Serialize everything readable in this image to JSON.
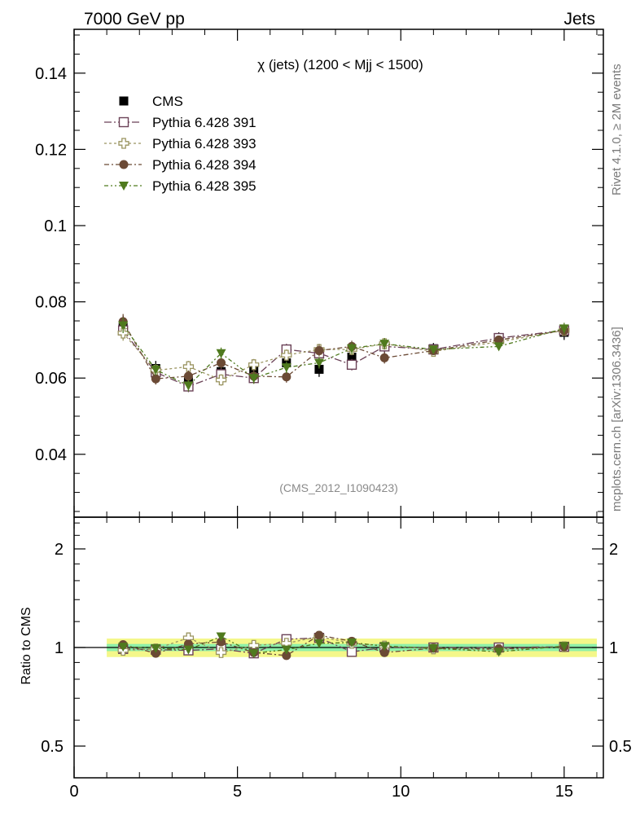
{
  "header": {
    "left_label": "7000 GeV pp",
    "right_label": "Jets"
  },
  "side": {
    "rivet_label": "Rivet 4.1.0, ≥ 2M events",
    "mcplots_label": "mcplots.cern.ch [arXiv:1306.3436]"
  },
  "colors": {
    "cms": "#000000",
    "p391": "#6b4257",
    "p393": "#9a9460",
    "p394": "#6b4a35",
    "p395": "#4f7a1e",
    "band_outer": "#f4f78a",
    "band_inner": "#8ef0a8"
  },
  "chart_data": [
    {
      "type": "scatter",
      "panel": "main",
      "title": "χ (jets) (1200 < Mjj < 1500)",
      "watermark": "(CMS_2012_I1090423)",
      "xlabel": "",
      "ylabel": "",
      "xlim": [
        0,
        16.2
      ],
      "ylim": [
        0.0235,
        0.1515
      ],
      "xticks": [
        0,
        5,
        10,
        15
      ],
      "xtick_labels": [
        "0",
        "5",
        "10",
        "15"
      ],
      "yticks": [
        0.04,
        0.06,
        0.08,
        0.1,
        0.12,
        0.14
      ],
      "ytick_labels": [
        "0.04",
        "0.06",
        "0.08",
        "0.1",
        "0.12",
        "0.14"
      ],
      "legend_position": "top-left",
      "x": [
        1.5,
        2.5,
        3.5,
        4.5,
        5.5,
        6.5,
        7.5,
        8.5,
        9.5,
        11,
        13,
        15
      ],
      "series": [
        {
          "name": "CMS",
          "key": "cms",
          "marker": "square-filled",
          "values": [
            0.0733,
            0.0625,
            0.059,
            0.0617,
            0.0625,
            0.064,
            0.0623,
            0.0655,
            0.0683,
            0.0677,
            0.0705,
            0.072
          ],
          "errors": [
            0.003,
            0.002,
            0.002,
            0.002,
            0.002,
            0.002,
            0.002,
            0.002,
            0.002,
            0.0015,
            0.0015,
            0.002
          ]
        },
        {
          "name": "Pythia 6.428 391",
          "key": "p391",
          "marker": "square-open",
          "values": [
            0.0725,
            0.0615,
            0.0578,
            0.061,
            0.06,
            0.0675,
            0.0665,
            0.0635,
            0.0683,
            0.0675,
            0.0705,
            0.0725
          ],
          "errors": [
            0.002,
            0.0015,
            0.0015,
            0.0015,
            0.0015,
            0.0015,
            0.0015,
            0.0015,
            0.0015,
            0.001,
            0.001,
            0.0015
          ]
        },
        {
          "name": "Pythia 6.428 393",
          "key": "p393",
          "marker": "cross-open",
          "values": [
            0.0718,
            0.062,
            0.063,
            0.0595,
            0.0635,
            0.066,
            0.0675,
            0.0675,
            0.069,
            0.067,
            0.0695,
            0.0725
          ],
          "errors": [
            0.002,
            0.0015,
            0.0015,
            0.0015,
            0.0015,
            0.0015,
            0.0015,
            0.0015,
            0.0015,
            0.001,
            0.001,
            0.0015
          ]
        },
        {
          "name": "Pythia 6.428 394",
          "key": "p394",
          "marker": "circle-filled",
          "values": [
            0.0748,
            0.0598,
            0.0605,
            0.064,
            0.0605,
            0.0603,
            0.0672,
            0.0683,
            0.0653,
            0.0672,
            0.07,
            0.0725
          ],
          "errors": [
            0.002,
            0.0015,
            0.0015,
            0.0015,
            0.0015,
            0.0015,
            0.0015,
            0.0015,
            0.0015,
            0.001,
            0.001,
            0.0015
          ]
        },
        {
          "name": "Pythia 6.428 395",
          "key": "p395",
          "marker": "triangle-down-filled",
          "values": [
            0.0738,
            0.0622,
            0.058,
            0.0665,
            0.06,
            0.0628,
            0.064,
            0.0678,
            0.069,
            0.0675,
            0.0683,
            0.073
          ],
          "errors": [
            0.002,
            0.0015,
            0.0015,
            0.0015,
            0.0015,
            0.0015,
            0.0015,
            0.0015,
            0.0015,
            0.001,
            0.001,
            0.0015
          ]
        }
      ]
    },
    {
      "type": "scatter",
      "panel": "ratio",
      "title": "",
      "xlabel": "",
      "ylabel": "Ratio to CMS",
      "xlim": [
        0,
        16.2
      ],
      "ylim": [
        0.4,
        2.5
      ],
      "yscale": "log",
      "xticks": [
        0,
        5,
        10,
        15
      ],
      "xtick_labels": [
        "0",
        "5",
        "10",
        "15"
      ],
      "yticks": [
        0.5,
        1,
        2
      ],
      "ytick_labels": [
        "0.5",
        "1",
        "2"
      ],
      "band_range": [
        1.0,
        16.0
      ],
      "band_outer_halfwidth": 0.065,
      "band_inner_halfwidth": 0.025,
      "x": [
        1.5,
        2.5,
        3.5,
        4.5,
        5.5,
        6.5,
        7.5,
        8.5,
        9.5,
        11,
        13,
        15
      ],
      "series": [
        {
          "name": "Pythia 6.428 391",
          "key": "p391",
          "marker": "square-open",
          "values": [
            0.99,
            0.985,
            0.98,
            0.99,
            0.96,
            1.06,
            1.07,
            0.97,
            1.0,
            1.0,
            1.0,
            1.005
          ]
        },
        {
          "name": "Pythia 6.428 393",
          "key": "p393",
          "marker": "cross-open",
          "values": [
            0.98,
            0.99,
            1.07,
            0.965,
            1.015,
            1.03,
            1.08,
            1.03,
            1.01,
            0.99,
            0.985,
            1.005
          ]
        },
        {
          "name": "Pythia 6.428 394",
          "key": "p394",
          "marker": "circle-filled",
          "values": [
            1.02,
            0.96,
            1.025,
            1.04,
            0.965,
            0.945,
            1.09,
            1.045,
            0.965,
            0.995,
            0.99,
            1.005
          ]
        },
        {
          "name": "Pythia 6.428 395",
          "key": "p395",
          "marker": "triangle-down-filled",
          "values": [
            1.005,
            0.995,
            0.985,
            1.08,
            0.96,
            0.985,
            1.03,
            1.035,
            1.01,
            0.995,
            0.97,
            1.01
          ]
        }
      ]
    }
  ]
}
